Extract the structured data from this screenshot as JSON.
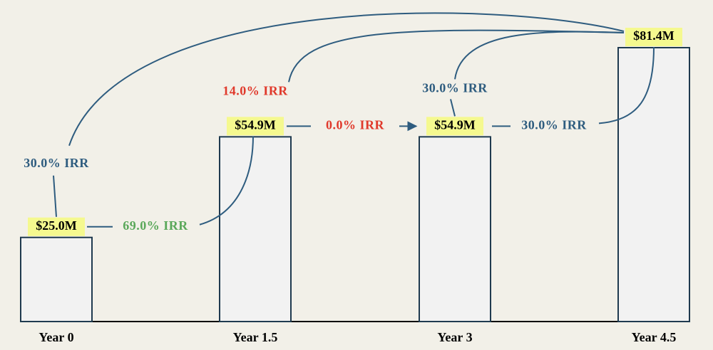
{
  "chart_data": {
    "type": "bar",
    "categories": [
      "Year 0",
      "Year 1.5",
      "Year 3",
      "Year 4.5"
    ],
    "values": [
      25.0,
      54.9,
      54.9,
      81.4
    ],
    "value_labels": [
      "$25.0M",
      "$54.9M",
      "$54.9M",
      "$81.4M"
    ],
    "color": "#f2f2f2",
    "annotations": [
      {
        "text": "69.0% IRR",
        "color": "#5aa85a"
      },
      {
        "text": "0.0% IRR",
        "color": "#e0392b"
      },
      {
        "text": "14.0% IRR",
        "color": "#e0392b"
      },
      {
        "text": "30.0% IRR",
        "color": "#2e5c7f"
      },
      {
        "text": "30.0% IRR",
        "color": "#2e5c7f"
      },
      {
        "text": "30.0% IRR",
        "color": "#2e5c7f"
      }
    ]
  }
}
